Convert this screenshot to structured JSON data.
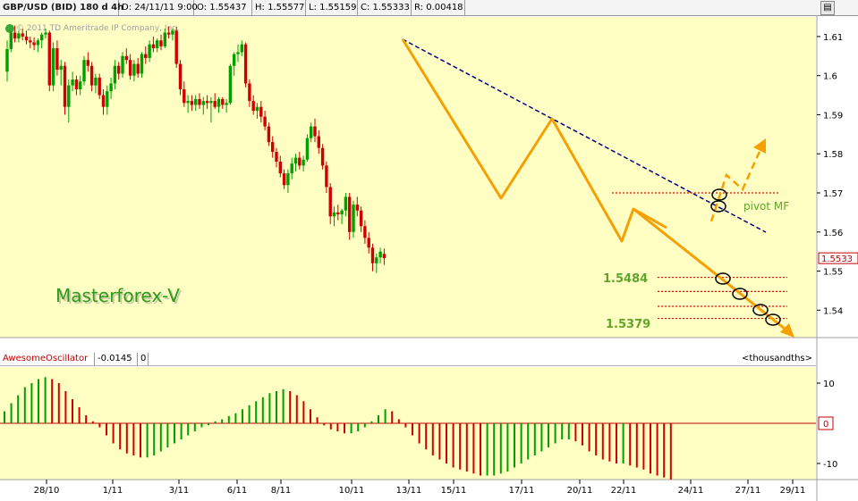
{
  "header": {
    "symbol": "GBP/USD (BID) 180 d 4h",
    "date": "D: 24/11/11 9:00",
    "open": "O: 1.55437",
    "high": "H: 1.55577",
    "low": "L: 1.55159",
    "close": "C: 1.55333",
    "range": "R: 0.00418",
    "scroll_icon": "scroll-lock-icon"
  },
  "watermark": "© 2011 TD Ameritrade IP Company, Inc.",
  "brand_label": "Masterforex-V",
  "annotations": {
    "pivot_label": "pivot MF",
    "level_upper": "1.5484",
    "level_lower": "1.5379"
  },
  "colors": {
    "background": "#ffffc4",
    "bull": "#00a000",
    "bear": "#d00000",
    "zigzag": "#f5a000",
    "trendline": "#00008b",
    "pivot_dots": "#ff0000",
    "annotation_text": "#5ea52a",
    "brand_text": "#2e9a1c"
  },
  "chart_data": [
    {
      "type": "candlestick",
      "title": "GBP/USD (BID) 180 d 4h",
      "ylim": [
        1.533,
        1.615
      ],
      "y_ticks": [
        "1.61",
        "1.6",
        "1.59",
        "1.58",
        "1.57",
        "1.56",
        "1.55",
        "1.54"
      ],
      "x_ticks": [
        "28/10",
        "1/11",
        "3/11",
        "6/11",
        "8/11",
        "10/11",
        "13/11",
        "15/11",
        "17/11",
        "20/11",
        "22/11",
        "24/11",
        "27/11",
        "29/11"
      ],
      "last_price_label": "1.5533",
      "candles": [
        [
          1.601,
          1.609,
          1.5985,
          1.6068
        ],
        [
          1.6068,
          1.6115,
          1.606,
          1.611
        ],
        [
          1.611,
          1.6128,
          1.6085,
          1.6095
        ],
        [
          1.6095,
          1.6115,
          1.6085,
          1.6108
        ],
        [
          1.6108,
          1.612,
          1.609,
          1.61
        ],
        [
          1.61,
          1.6115,
          1.608,
          1.609
        ],
        [
          1.609,
          1.61,
          1.607,
          1.6085
        ],
        [
          1.6085,
          1.6098,
          1.6065,
          1.6078
        ],
        [
          1.6078,
          1.6095,
          1.606,
          1.609
        ],
        [
          1.609,
          1.611,
          1.607,
          1.6105
        ],
        [
          1.6105,
          1.612,
          1.6095,
          1.611
        ],
        [
          1.611,
          1.6115,
          1.596,
          1.5975
        ],
        [
          1.5975,
          1.6085,
          1.596,
          1.607
        ],
        [
          1.607,
          1.609,
          1.6,
          1.6015
        ],
        [
          1.6015,
          1.604,
          1.5975,
          1.6025
        ],
        [
          1.6025,
          1.6035,
          1.59,
          1.592
        ],
        [
          1.592,
          1.599,
          1.588,
          1.5975
        ],
        [
          1.5975,
          1.601,
          1.596,
          1.599
        ],
        [
          1.599,
          1.6,
          1.595,
          1.5965
        ],
        [
          1.5965,
          1.6,
          1.595,
          1.5985
        ],
        [
          1.5985,
          1.605,
          1.5975,
          1.604
        ],
        [
          1.604,
          1.606,
          1.601,
          1.6025
        ],
        [
          1.6025,
          1.6035,
          1.596,
          1.5975
        ],
        [
          1.5975,
          1.6005,
          1.5955,
          1.5995
        ],
        [
          1.5995,
          1.6005,
          1.594,
          1.595
        ],
        [
          1.595,
          1.5965,
          1.59,
          1.592
        ],
        [
          1.592,
          1.5975,
          1.59,
          1.596
        ],
        [
          1.596,
          1.5995,
          1.594,
          1.598
        ],
        [
          1.598,
          1.604,
          1.5965,
          1.6025
        ],
        [
          1.6025,
          1.6035,
          1.599,
          1.6005
        ],
        [
          1.6005,
          1.606,
          1.5995,
          1.605
        ],
        [
          1.605,
          1.607,
          1.603,
          1.604
        ],
        [
          1.604,
          1.6055,
          1.599,
          1.6
        ],
        [
          1.6,
          1.604,
          1.5985,
          1.603
        ],
        [
          1.603,
          1.6045,
          1.5995,
          1.6005
        ],
        [
          1.6005,
          1.606,
          1.5995,
          1.6055
        ],
        [
          1.6055,
          1.6075,
          1.603,
          1.6045
        ],
        [
          1.6045,
          1.609,
          1.6035,
          1.608
        ],
        [
          1.608,
          1.61,
          1.606,
          1.607
        ],
        [
          1.607,
          1.6095,
          1.606,
          1.609
        ],
        [
          1.609,
          1.6105,
          1.6065,
          1.6075
        ],
        [
          1.6075,
          1.612,
          1.607,
          1.611
        ],
        [
          1.611,
          1.6125,
          1.6095,
          1.6105
        ],
        [
          1.6105,
          1.612,
          1.609,
          1.6115
        ],
        [
          1.6115,
          1.6125,
          1.602,
          1.603
        ],
        [
          1.603,
          1.604,
          1.595,
          1.5965
        ],
        [
          1.5965,
          1.5985,
          1.592,
          1.593
        ],
        [
          1.593,
          1.595,
          1.5905,
          1.5935
        ],
        [
          1.5935,
          1.595,
          1.591,
          1.5925
        ],
        [
          1.5925,
          1.595,
          1.591,
          1.594
        ],
        [
          1.594,
          1.5955,
          1.5915,
          1.5925
        ],
        [
          1.5925,
          1.5945,
          1.59,
          1.5935
        ],
        [
          1.5935,
          1.595,
          1.5915,
          1.593
        ],
        [
          1.593,
          1.5945,
          1.588,
          1.5935
        ],
        [
          1.5935,
          1.5955,
          1.5915,
          1.592
        ],
        [
          1.592,
          1.5945,
          1.5905,
          1.594
        ],
        [
          1.594,
          1.5945,
          1.5915,
          1.5925
        ],
        [
          1.5925,
          1.594,
          1.5905,
          1.593
        ],
        [
          1.593,
          1.603,
          1.5925,
          1.6025
        ],
        [
          1.6025,
          1.606,
          1.6,
          1.6055
        ],
        [
          1.6055,
          1.608,
          1.6035,
          1.606
        ],
        [
          1.606,
          1.609,
          1.605,
          1.608
        ],
        [
          1.608,
          1.6085,
          1.597,
          1.598
        ],
        [
          1.598,
          1.599,
          1.592,
          1.5935
        ],
        [
          1.5935,
          1.595,
          1.59,
          1.591
        ],
        [
          1.591,
          1.593,
          1.589,
          1.592
        ],
        [
          1.592,
          1.5935,
          1.588,
          1.5895
        ],
        [
          1.5895,
          1.591,
          1.586,
          1.587
        ],
        [
          1.587,
          1.588,
          1.582,
          1.583
        ],
        [
          1.583,
          1.5845,
          1.579,
          1.5805
        ],
        [
          1.5805,
          1.5815,
          1.5765,
          1.578
        ],
        [
          1.578,
          1.5795,
          1.574,
          1.575
        ],
        [
          1.575,
          1.576,
          1.571,
          1.572
        ],
        [
          1.572,
          1.576,
          1.57,
          1.575
        ],
        [
          1.575,
          1.579,
          1.5735,
          1.5775
        ],
        [
          1.5775,
          1.58,
          1.5755,
          1.579
        ],
        [
          1.579,
          1.5805,
          1.576,
          1.577
        ],
        [
          1.577,
          1.5795,
          1.5755,
          1.5785
        ],
        [
          1.5785,
          1.585,
          1.578,
          1.584
        ],
        [
          1.584,
          1.588,
          1.583,
          1.587
        ],
        [
          1.587,
          1.589,
          1.583,
          1.5845
        ],
        [
          1.5845,
          1.586,
          1.58,
          1.5815
        ],
        [
          1.5815,
          1.5825,
          1.576,
          1.577
        ],
        [
          1.577,
          1.578,
          1.57,
          1.5715
        ],
        [
          1.5715,
          1.5725,
          1.562,
          1.564
        ],
        [
          1.564,
          1.5665,
          1.5615,
          1.565
        ],
        [
          1.565,
          1.567,
          1.563,
          1.5645
        ],
        [
          1.5645,
          1.566,
          1.562,
          1.5655
        ],
        [
          1.5655,
          1.57,
          1.564,
          1.569
        ],
        [
          1.569,
          1.57,
          1.558,
          1.56
        ],
        [
          1.56,
          1.568,
          1.5585,
          1.567
        ],
        [
          1.567,
          1.569,
          1.564,
          1.5655
        ],
        [
          1.5655,
          1.5665,
          1.56,
          1.5615
        ],
        [
          1.5615,
          1.563,
          1.557,
          1.5585
        ],
        [
          1.5585,
          1.56,
          1.5545,
          1.556
        ],
        [
          1.556,
          1.557,
          1.55,
          1.552
        ],
        [
          1.552,
          1.5545,
          1.5495,
          1.5535
        ],
        [
          1.5535,
          1.556,
          1.552,
          1.555
        ],
        [
          1.5544,
          1.5558,
          1.5516,
          1.5533
        ]
      ]
    },
    {
      "type": "bar",
      "title": "AwesomeOscillator",
      "value_label": "-0.0145",
      "param_label": "0",
      "units_label": "<thousandths>",
      "zero_label": "0",
      "y_ticks": [
        "10",
        "-10"
      ],
      "ylim": [
        -14,
        14
      ],
      "values": [
        3,
        5,
        7,
        9,
        10,
        11,
        11.5,
        11,
        10,
        8,
        6,
        4,
        2,
        0.5,
        -1,
        -3,
        -5,
        -6.5,
        -7.5,
        -8,
        -8.5,
        -8.5,
        -8,
        -7,
        -6,
        -5,
        -4,
        -3,
        -2,
        -1,
        -0.5,
        0.5,
        1,
        1.8,
        2.5,
        3.5,
        4.5,
        5.5,
        6.5,
        7.5,
        8,
        8.5,
        8,
        7,
        5.5,
        3.5,
        1.5,
        -0.5,
        -1.5,
        -2,
        -2.5,
        -2.5,
        -2,
        -1,
        0.5,
        2,
        3.5,
        3,
        1,
        -1,
        -3,
        -5,
        -6.5,
        -8,
        -9,
        -10,
        -11,
        -11.5,
        -12,
        -12.5,
        -13,
        -13,
        -13,
        -12.5,
        -12,
        -11,
        -10,
        -9,
        -8,
        -7,
        -6,
        -5,
        -4,
        -4,
        -4.5,
        -5.5,
        -7,
        -8,
        -9,
        -9.5,
        -10,
        -10,
        -10.5,
        -11,
        -11.5,
        -12.5,
        -13,
        -13.5,
        -14
      ]
    }
  ]
}
